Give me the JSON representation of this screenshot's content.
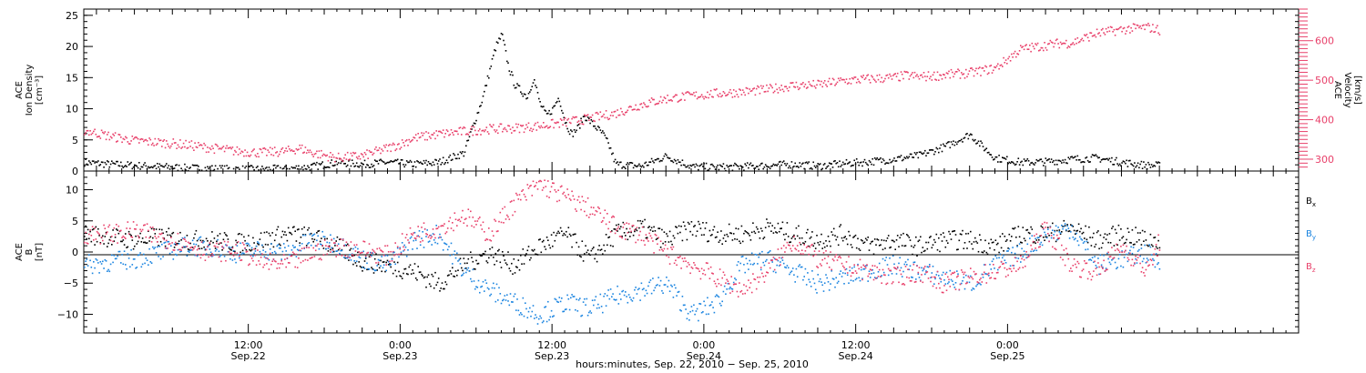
{
  "chart_data": [
    {
      "type": "scatter",
      "panel": "top",
      "left_axis": {
        "label_lines": [
          "ACE",
          "Ion Density",
          "[cm⁻³]"
        ],
        "ylim": [
          0,
          26
        ],
        "ticks": [
          0,
          5,
          10,
          15,
          20,
          25
        ],
        "tick_labels": [
          "0",
          "5",
          "10",
          "15",
          "20",
          "25"
        ]
      },
      "right_axis": {
        "label_lines": [
          "ACE",
          "Velocity",
          "[km/s]"
        ],
        "ylim": [
          270,
          680
        ],
        "ticks": [
          300,
          400,
          500,
          600
        ],
        "tick_labels": [
          "300",
          "400",
          "500",
          "600"
        ],
        "color": "#e8406a"
      },
      "series": [
        {
          "color": "#000000",
          "axis": "left",
          "x_hours": [
            0,
            2,
            4,
            6,
            8,
            10,
            12,
            14,
            16,
            18,
            20,
            22,
            24,
            26,
            28,
            30,
            30.5,
            31,
            31.5,
            32,
            32.5,
            33,
            33.5,
            34,
            34.5,
            35,
            35.5,
            36,
            36.5,
            37,
            37.5,
            38,
            38.5,
            39,
            39.5,
            40,
            40.5,
            41,
            41.5,
            42,
            44,
            46,
            48,
            50,
            52,
            54,
            56,
            58,
            60,
            62,
            64,
            66,
            68,
            69,
            70,
            71,
            72,
            74,
            76,
            78,
            80,
            82,
            84,
            85
          ],
          "y": [
            1.5,
            1.2,
            1.0,
            0.8,
            0.6,
            0.5,
            0.4,
            0.4,
            0.5,
            0.8,
            1.5,
            1.2,
            1.5,
            1.2,
            1.5,
            3,
            6,
            9,
            12,
            16,
            20,
            22,
            17,
            14,
            13,
            12,
            15,
            11,
            9,
            10,
            12,
            8,
            6,
            7,
            9,
            8,
            7,
            6,
            4,
            1.2,
            0.9,
            2.5,
            0.8,
            0.7,
            0.8,
            1.0,
            1.2,
            0.9,
            1.3,
            1.6,
            2.0,
            2.6,
            4.0,
            5.0,
            6.0,
            4.0,
            2.2,
            1.5,
            1.6,
            2.0,
            2.2,
            1.5,
            1.0,
            1.0
          ]
        },
        {
          "color": "#e8406a",
          "axis": "right",
          "x_hours": [
            0,
            2,
            4,
            6,
            8,
            10,
            12,
            14,
            16,
            17,
            18,
            20,
            22,
            24,
            25,
            26,
            28,
            30,
            32,
            34,
            36,
            38,
            40,
            42,
            44,
            46,
            48,
            50,
            52,
            54,
            56,
            58,
            60,
            62,
            64,
            65,
            66,
            68,
            70,
            72,
            73,
            74,
            76,
            77,
            78,
            80,
            82,
            84,
            85
          ],
          "y": [
            375,
            360,
            348,
            344,
            338,
            330,
            322,
            318,
            322,
            330,
            318,
            305,
            310,
            330,
            340,
            355,
            365,
            372,
            378,
            380,
            386,
            395,
            405,
            418,
            440,
            455,
            462,
            468,
            472,
            478,
            488,
            490,
            500,
            505,
            508,
            514,
            510,
            515,
            520,
            532,
            556,
            580,
            590,
            595,
            596,
            620,
            630,
            636,
            628
          ]
        }
      ]
    },
    {
      "type": "scatter",
      "panel": "bottom",
      "left_axis": {
        "label_lines": [
          "ACE",
          "B",
          "[nT]"
        ],
        "ylim": [
          -13,
          13
        ],
        "ticks": [
          -10,
          -5,
          0,
          5,
          10
        ],
        "tick_labels": [
          "−10",
          "−5",
          "0",
          "5",
          "10"
        ]
      },
      "series": [
        {
          "label": "Bₓ",
          "color": "#000000",
          "x_hours": [
            0,
            2,
            4,
            6,
            8,
            10,
            12,
            14,
            16,
            18,
            20,
            22,
            24,
            26,
            28,
            30,
            32,
            34,
            36,
            38,
            40,
            42,
            44,
            46,
            48,
            50,
            52,
            54,
            56,
            58,
            60,
            62,
            64,
            66,
            68,
            70,
            72,
            74,
            76,
            78,
            80,
            82,
            84,
            85
          ],
          "y": [
            3,
            2.5,
            2,
            2.5,
            2,
            2,
            1.5,
            2,
            3,
            2.5,
            1,
            -1.5,
            -2,
            -3,
            -5,
            -2,
            0,
            -2,
            1,
            3,
            -1,
            3,
            4,
            2,
            4,
            3,
            3,
            4,
            3,
            2,
            3,
            1,
            2,
            1,
            2,
            2,
            1,
            3,
            3,
            4,
            2,
            3,
            2,
            2
          ]
        },
        {
          "label": "Bᵧ",
          "color": "#1a84e0",
          "x_hours": [
            0,
            2,
            4,
            6,
            8,
            10,
            12,
            14,
            16,
            18,
            20,
            22,
            24,
            26,
            28,
            30,
            32,
            34,
            36,
            38,
            40,
            42,
            44,
            46,
            48,
            50,
            52,
            54,
            56,
            58,
            60,
            62,
            64,
            66,
            68,
            70,
            72,
            74,
            76,
            78,
            80,
            82,
            84,
            85
          ],
          "y": [
            -2,
            -1.5,
            -1,
            0,
            1,
            1,
            0,
            0.5,
            0,
            2,
            1.5,
            -1,
            -2,
            2,
            3,
            -3,
            -6,
            -8,
            -10,
            -8,
            -9,
            -7,
            -6,
            -5,
            -10,
            -8,
            -2,
            -1,
            -3,
            -5,
            -4,
            -3,
            -2,
            -3,
            -4,
            -5,
            -2,
            0,
            3,
            4,
            -2,
            -1,
            0,
            -2
          ]
        },
        {
          "label": "B_z",
          "color": "#e8406a",
          "x_hours": [
            0,
            2,
            4,
            6,
            8,
            10,
            12,
            14,
            16,
            18,
            20,
            22,
            24,
            26,
            28,
            30,
            32,
            34,
            36,
            38,
            40,
            42,
            44,
            46,
            48,
            50,
            52,
            54,
            56,
            58,
            60,
            62,
            64,
            66,
            68,
            70,
            72,
            74,
            76,
            78,
            80,
            82,
            84,
            85
          ],
          "y": [
            3,
            3,
            3.5,
            2.5,
            1.5,
            0,
            0.5,
            -1.5,
            -2,
            0,
            1,
            0.5,
            -0.5,
            3,
            4,
            6,
            3,
            8,
            11,
            9,
            7,
            4,
            3,
            0,
            -2,
            -4,
            -6,
            -3,
            2,
            -1,
            -2,
            -3,
            -4,
            -3,
            -5,
            -4,
            -3,
            -2,
            4,
            -2,
            -3,
            1,
            -3,
            2
          ]
        }
      ],
      "legend": [
        {
          "label": "B",
          "sub": "x",
          "color": "#000000"
        },
        {
          "label": "B",
          "sub": "y",
          "color": "#1a84e0"
        },
        {
          "label": "B",
          "sub": "z",
          "color": "#e8406a"
        }
      ]
    }
  ],
  "x_axis": {
    "start_hour": 0,
    "end_hour": 96,
    "major_ticks_hours": [
      13,
      25,
      37,
      49,
      61,
      73
    ],
    "major_tick_labels": [
      [
        "12:00",
        "Sep.22"
      ],
      [
        "0:00",
        "Sep.23"
      ],
      [
        "12:00",
        "Sep.23"
      ],
      [
        "0:00",
        "Sep.24"
      ],
      [
        "12:00",
        "Sep.24"
      ],
      [
        "0:00",
        "Sep.25"
      ]
    ],
    "xlabel": "hours:minutes, Sep. 22, 2010 − Sep. 25, 2010"
  }
}
